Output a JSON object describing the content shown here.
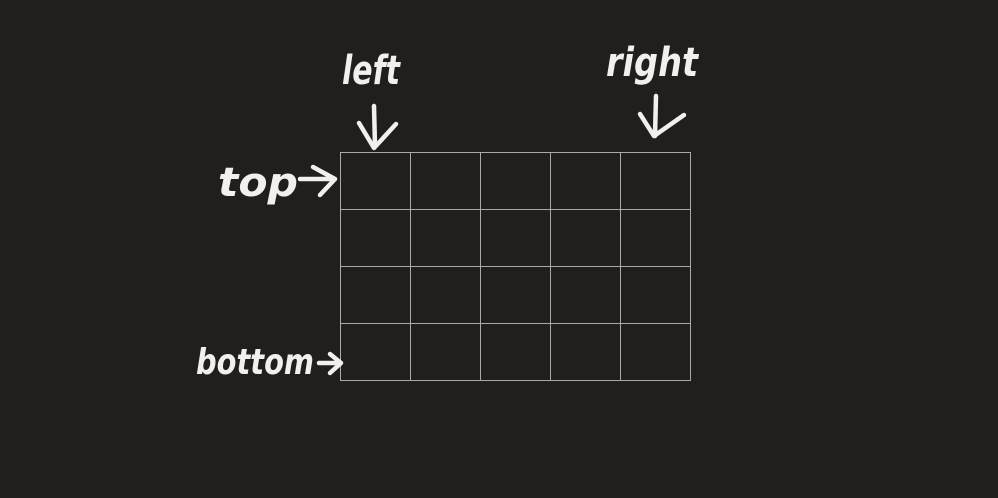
{
  "diagram": {
    "rows": 4,
    "columns": 5,
    "labels": {
      "left": "left",
      "right": "right",
      "top": "top",
      "bottom": "bottom"
    },
    "colors": {
      "background": "#201f1e",
      "ink": "#f1f0ec",
      "grid": "#a9a9a9"
    }
  }
}
